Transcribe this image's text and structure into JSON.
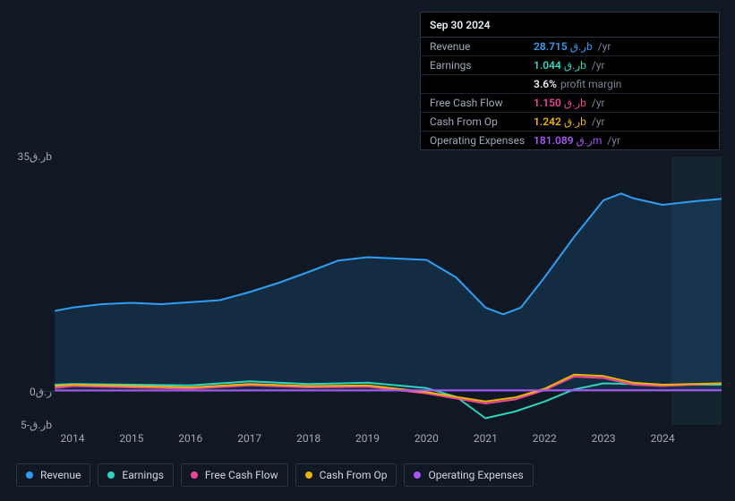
{
  "tooltip": {
    "date": "Sep 30 2024",
    "rows": [
      {
        "label": "Revenue",
        "value": "28.715",
        "unit": "ر.قb",
        "suffix": "/yr",
        "color": "#2f9ef4"
      },
      {
        "label": "Earnings",
        "value": "1.044",
        "unit": "ر.قb",
        "suffix": "/yr",
        "color": "#2dd4bf"
      },
      {
        "label": "Free Cash Flow",
        "value": "1.150",
        "unit": "ر.قb",
        "suffix": "/yr",
        "color": "#ec4899"
      },
      {
        "label": "Cash From Op",
        "value": "1.242",
        "unit": "ر.قb",
        "suffix": "/yr",
        "color": "#eab308"
      },
      {
        "label": "Operating Expenses",
        "value": "181.089",
        "unit": "ر.قm",
        "suffix": "/yr",
        "color": "#a855f7"
      }
    ],
    "note": {
      "value": "3.6%",
      "text": "profit margin",
      "after_row": 1
    }
  },
  "chart": {
    "background_color": "#0f1823",
    "grid_color": "#1a2330",
    "y_axis": {
      "min": -5,
      "max": 35,
      "ticks": [
        {
          "v": 35,
          "label": "ر.ق35b"
        },
        {
          "v": 0,
          "label": "ر.ق0"
        },
        {
          "v": -5,
          "label": "ر.ق-5b"
        }
      ]
    },
    "x_axis": {
      "min": 2013.5,
      "max": 2025,
      "ticks": [
        2014,
        2015,
        2016,
        2017,
        2018,
        2019,
        2020,
        2021,
        2022,
        2023,
        2024
      ],
      "highlight_from": 2024.15
    },
    "series": [
      {
        "name": "Revenue",
        "color": "#2f9ef4",
        "fill": true,
        "fill_opacity": 0.15,
        "points": [
          [
            2013.7,
            12.0
          ],
          [
            2014,
            12.5
          ],
          [
            2014.5,
            13.0
          ],
          [
            2015,
            13.2
          ],
          [
            2015.5,
            13.0
          ],
          [
            2016,
            13.3
          ],
          [
            2016.5,
            13.6
          ],
          [
            2017,
            14.8
          ],
          [
            2017.5,
            16.2
          ],
          [
            2018,
            17.8
          ],
          [
            2018.5,
            19.5
          ],
          [
            2019,
            20.0
          ],
          [
            2019.5,
            19.8
          ],
          [
            2020,
            19.6
          ],
          [
            2020.5,
            17.0
          ],
          [
            2021,
            12.5
          ],
          [
            2021.3,
            11.5
          ],
          [
            2021.6,
            12.5
          ],
          [
            2022,
            17.0
          ],
          [
            2022.5,
            23.0
          ],
          [
            2023,
            28.5
          ],
          [
            2023.3,
            29.5
          ],
          [
            2023.5,
            28.8
          ],
          [
            2024,
            27.8
          ],
          [
            2024.5,
            28.3
          ],
          [
            2025,
            28.7
          ]
        ]
      },
      {
        "name": "Earnings",
        "color": "#2dd4bf",
        "fill": false,
        "points": [
          [
            2013.7,
            1.0
          ],
          [
            2014,
            1.1
          ],
          [
            2015,
            1.0
          ],
          [
            2016,
            0.9
          ],
          [
            2017,
            1.5
          ],
          [
            2018,
            1.1
          ],
          [
            2019,
            1.3
          ],
          [
            2020,
            0.5
          ],
          [
            2020.5,
            -0.8
          ],
          [
            2021,
            -4.0
          ],
          [
            2021.5,
            -3.0
          ],
          [
            2022,
            -1.5
          ],
          [
            2022.5,
            0.3
          ],
          [
            2023,
            1.2
          ],
          [
            2024,
            1.0
          ],
          [
            2025,
            1.0
          ]
        ]
      },
      {
        "name": "Free Cash Flow",
        "color": "#ec4899",
        "fill": false,
        "points": [
          [
            2013.7,
            0.5
          ],
          [
            2014,
            0.8
          ],
          [
            2015,
            0.6
          ],
          [
            2016,
            0.4
          ],
          [
            2017,
            0.9
          ],
          [
            2018,
            0.6
          ],
          [
            2019,
            0.7
          ],
          [
            2020,
            -0.3
          ],
          [
            2021,
            -1.8
          ],
          [
            2021.5,
            -1.2
          ],
          [
            2022,
            0.2
          ],
          [
            2022.5,
            2.2
          ],
          [
            2023,
            2.0
          ],
          [
            2023.5,
            1.0
          ],
          [
            2024,
            0.8
          ],
          [
            2025,
            1.2
          ]
        ]
      },
      {
        "name": "Cash From Op",
        "color": "#eab308",
        "fill": false,
        "points": [
          [
            2013.7,
            0.8
          ],
          [
            2014,
            1.0
          ],
          [
            2015,
            0.8
          ],
          [
            2016,
            0.6
          ],
          [
            2017,
            1.1
          ],
          [
            2018,
            0.8
          ],
          [
            2019,
            0.9
          ],
          [
            2020,
            -0.1
          ],
          [
            2021,
            -1.5
          ],
          [
            2021.5,
            -0.9
          ],
          [
            2022,
            0.4
          ],
          [
            2022.5,
            2.5
          ],
          [
            2023,
            2.3
          ],
          [
            2023.5,
            1.3
          ],
          [
            2024,
            1.0
          ],
          [
            2025,
            1.2
          ]
        ]
      },
      {
        "name": "Operating Expenses",
        "color": "#a855f7",
        "fill": false,
        "points": [
          [
            2013.7,
            0.15
          ],
          [
            2015,
            0.15
          ],
          [
            2017,
            0.16
          ],
          [
            2019,
            0.17
          ],
          [
            2020,
            0.17
          ],
          [
            2021,
            0.16
          ],
          [
            2022,
            0.17
          ],
          [
            2023,
            0.18
          ],
          [
            2024,
            0.18
          ],
          [
            2025,
            0.18
          ]
        ]
      }
    ]
  },
  "legend": [
    {
      "name": "Revenue",
      "color": "#2f9ef4"
    },
    {
      "name": "Earnings",
      "color": "#2dd4bf"
    },
    {
      "name": "Free Cash Flow",
      "color": "#ec4899"
    },
    {
      "name": "Cash From Op",
      "color": "#eab308"
    },
    {
      "name": "Operating Expenses",
      "color": "#a855f7"
    }
  ]
}
